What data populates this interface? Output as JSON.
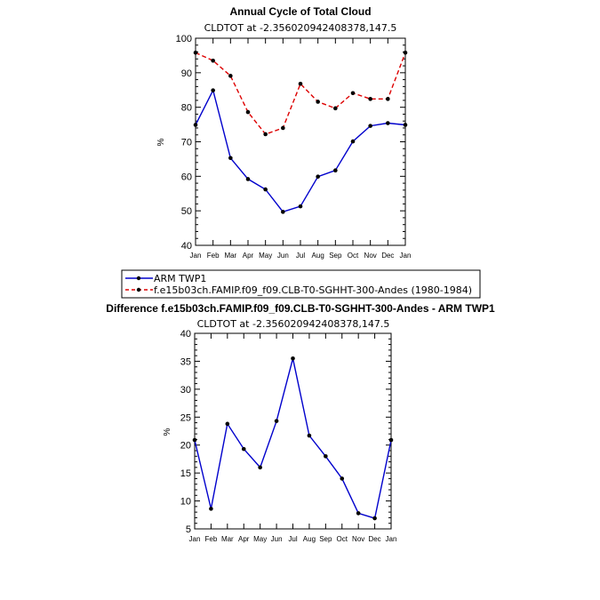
{
  "chart_data": [
    {
      "type": "line",
      "title": "Annual Cycle of Total Cloud",
      "subtitle": "CLDTOT at -2.356020942408378,147.5",
      "ylabel": "%",
      "xlabel": "",
      "ylim": [
        40,
        100
      ],
      "yticks": [
        "40",
        "50",
        "60",
        "70",
        "80",
        "90",
        "100"
      ],
      "categories": [
        "Jan",
        "Feb",
        "Mar",
        "Apr",
        "May",
        "Jun",
        "Jul",
        "Aug",
        "Sep",
        "Oct",
        "Nov",
        "Dec",
        "Jan"
      ],
      "series": [
        {
          "name": "ARM TWP1",
          "color": "#0000cc",
          "dash": "solid",
          "values": [
            74.9,
            84.9,
            65.3,
            59.2,
            56.2,
            49.7,
            51.3,
            59.9,
            61.7,
            70.1,
            74.6,
            75.4,
            74.9
          ]
        },
        {
          "name": "f.e15b03ch.FAMIP.f09_f09.CLB-T0-SGHHT-300-Andes (1980-1984)",
          "color": "#dd0000",
          "dash": "dashed",
          "values": [
            95.8,
            93.5,
            89.1,
            78.6,
            72.2,
            74.0,
            86.8,
            81.6,
            79.7,
            84.1,
            82.4,
            82.4,
            95.8
          ]
        }
      ]
    },
    {
      "type": "line",
      "title": "Difference f.e15b03ch.FAMIP.f09_f09.CLB-T0-SGHHT-300-Andes - ARM TWP1",
      "subtitle": "CLDTOT at -2.356020942408378,147.5",
      "ylabel": "%",
      "xlabel": "",
      "ylim": [
        5,
        40
      ],
      "yticks": [
        "5",
        "10",
        "15",
        "20",
        "25",
        "30",
        "35",
        "40"
      ],
      "categories": [
        "Jan",
        "Feb",
        "Mar",
        "Apr",
        "May",
        "Jun",
        "Jul",
        "Aug",
        "Sep",
        "Oct",
        "Nov",
        "Dec",
        "Jan"
      ],
      "series": [
        {
          "name": "difference",
          "color": "#0000cc",
          "dash": "solid",
          "values": [
            20.9,
            8.6,
            23.8,
            19.3,
            16.0,
            24.3,
            35.5,
            21.7,
            18.0,
            14.0,
            7.8,
            6.9,
            20.9
          ]
        }
      ]
    }
  ]
}
